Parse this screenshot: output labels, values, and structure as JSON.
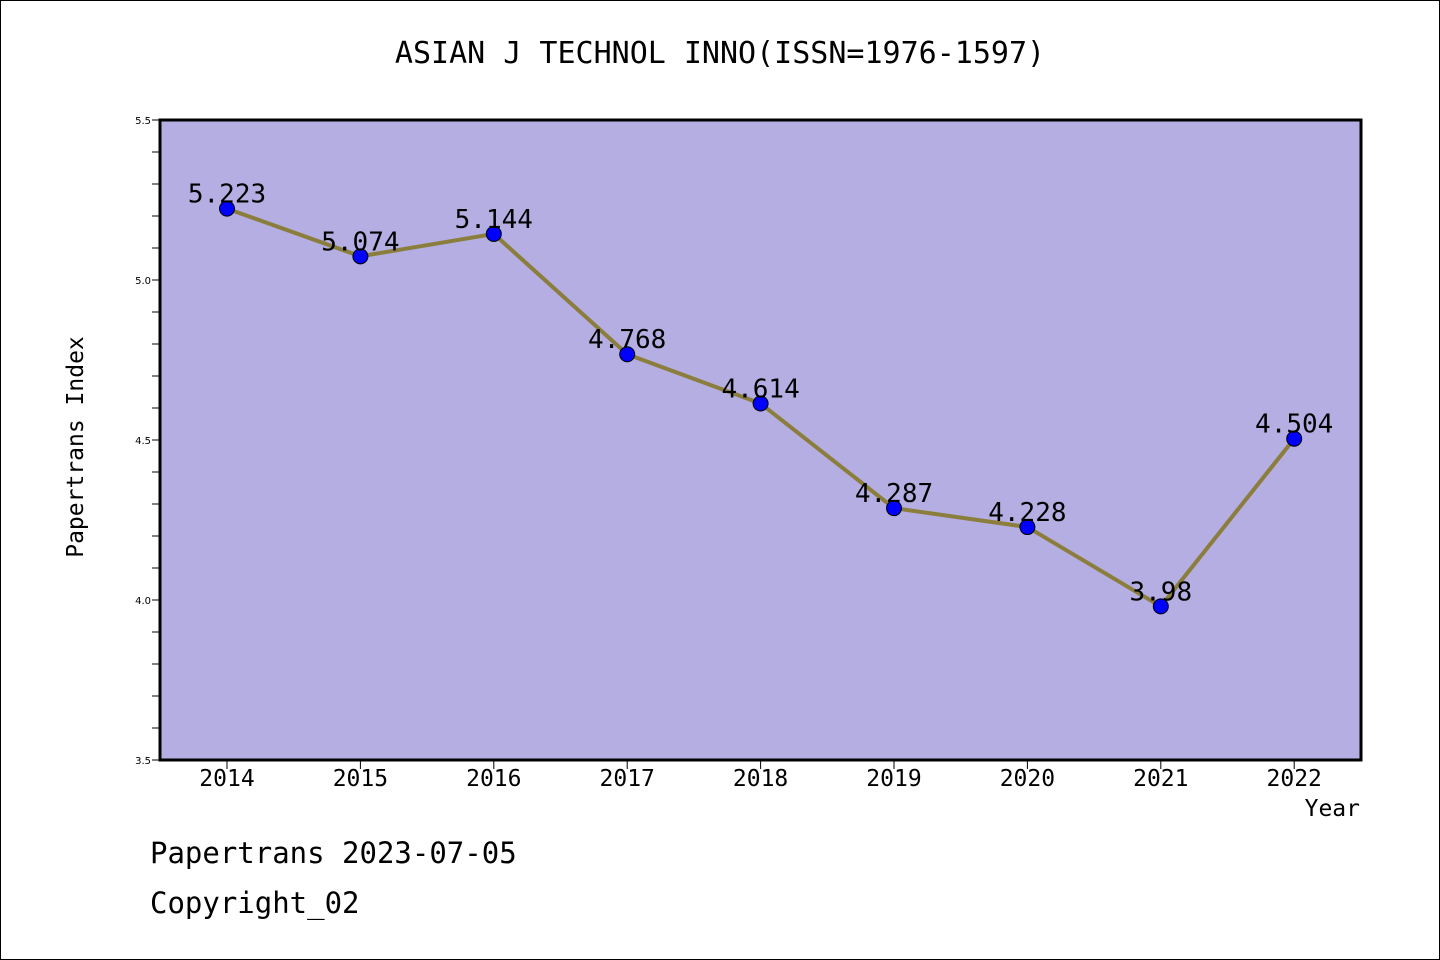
{
  "chart_data": {
    "type": "line",
    "title": "ASIAN J TECHNOL INNO(ISSN=1976-1597)",
    "xlabel": "Year",
    "ylabel": "Papertrans Index",
    "categories": [
      "2014",
      "2015",
      "2016",
      "2017",
      "2018",
      "2019",
      "2020",
      "2021",
      "2022"
    ],
    "series": [
      {
        "values": [
          5.223,
          5.074,
          5.144,
          4.768,
          4.614,
          4.287,
          4.228,
          3.98,
          4.504
        ],
        "data_labels": [
          "5.223",
          "5.074",
          "5.144",
          "4.768",
          "4.614",
          "4.287",
          "4.228",
          "3.98",
          "4.504"
        ]
      }
    ],
    "ylim": [
      3.5,
      5.5
    ],
    "y_ticks": [
      "3.5",
      "4.0",
      "4.5",
      "5.0",
      "5.5"
    ],
    "grid": false,
    "colors": {
      "plot_background": "#b4aee2",
      "line": "#8b7d3c",
      "marker": "#0000ff"
    }
  },
  "footer": {
    "line1": "Papertrans 2023-07-05",
    "line2": "Copyright_02"
  }
}
